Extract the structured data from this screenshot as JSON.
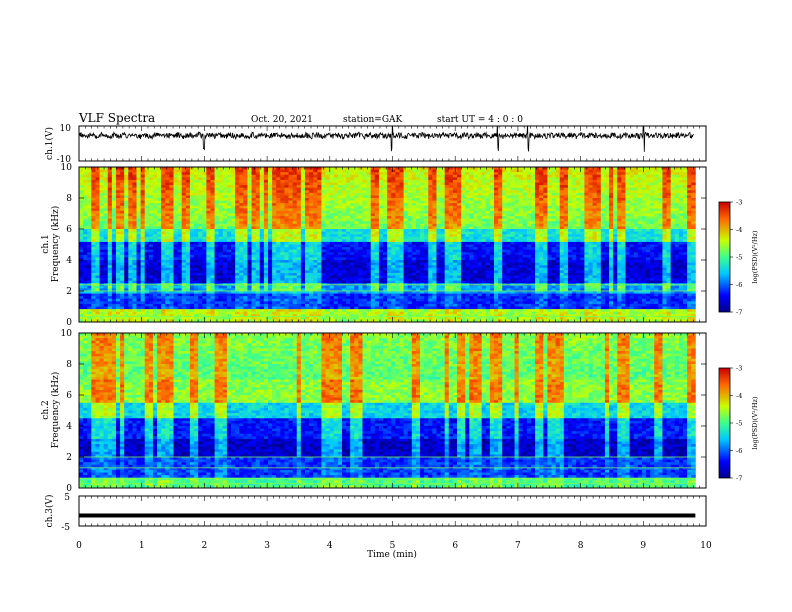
{
  "header": {
    "title": "VLF Spectra",
    "date": "Oct. 20, 2021",
    "station": "station=GAK",
    "start": "start UT =  4 : 0  : 0"
  },
  "chart_data": [
    {
      "type": "line",
      "ylabel": "ch.1(V)",
      "ylim": [
        -10,
        10
      ],
      "yticklabels": [
        "10",
        "-10"
      ],
      "baseline": 4.5,
      "series": [
        {
          "color": "#000000"
        }
      ],
      "note": "noisy waveform around +4.5 V with occasional spikes"
    },
    {
      "type": "heatmap",
      "ylabel": [
        "ch.1",
        "Frequency (kHz)"
      ],
      "ylim": [
        0,
        10
      ],
      "yticks": [
        0,
        2,
        4,
        6,
        8,
        10
      ],
      "colorbar": {
        "label": "log(PSD)(V²/Hz)",
        "ticks": [
          "-3",
          "-4",
          "-5",
          "-6",
          "-7"
        ],
        "range": [
          -7,
          -3
        ]
      }
    },
    {
      "type": "heatmap",
      "ylabel": [
        "ch.2",
        "Frequency (kHz)"
      ],
      "ylim": [
        0,
        10
      ],
      "yticks": [
        0,
        2,
        4,
        6,
        8,
        10
      ],
      "colorbar": {
        "label": "log(PSD)(V²/Hz)",
        "ticks": [
          "-3",
          "-4",
          "-5",
          "-6",
          "-7"
        ],
        "range": [
          -7,
          -3
        ]
      }
    },
    {
      "type": "line",
      "ylabel": "ch.3(V)",
      "ylim": [
        -5,
        5
      ],
      "yticklabels": [
        "5",
        "-5"
      ],
      "series": [
        {
          "value": -1.5,
          "color": "#000000"
        }
      ]
    }
  ],
  "x_axis": {
    "label": "Time (min)",
    "range": [
      0,
      10
    ],
    "ticks": [
      "0",
      "1",
      "2",
      "3",
      "4",
      "5",
      "6",
      "7",
      "8",
      "9",
      "10"
    ]
  }
}
